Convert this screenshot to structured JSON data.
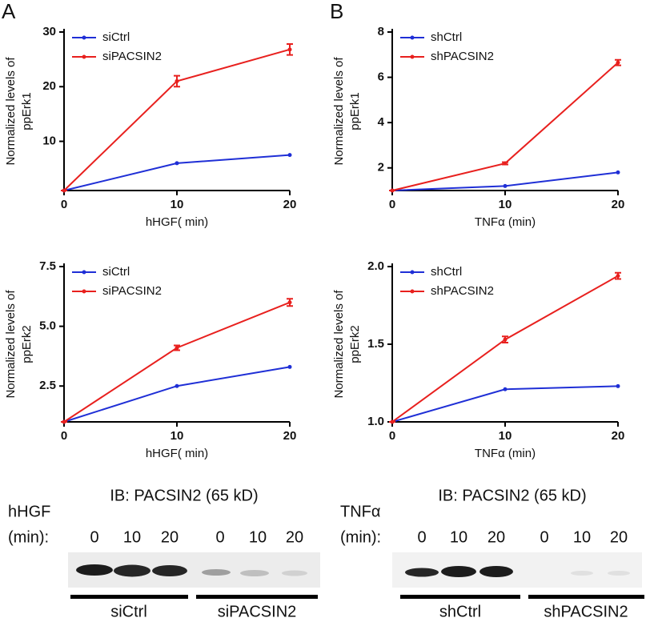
{
  "panel_labels": [
    "A",
    "B"
  ],
  "chart_data": [
    {
      "type": "line",
      "xlabel": "hHGF( min)",
      "ylabel": [
        "Normalized levels of",
        "ppErk1"
      ],
      "x": [
        0,
        10,
        20
      ],
      "xlim": [
        0,
        20
      ],
      "xticks": [
        0,
        10,
        20
      ],
      "ylim": [
        1,
        30
      ],
      "yticks": [
        10,
        20,
        30
      ],
      "legend": "upper left",
      "series": [
        {
          "name": "siCtrl",
          "color": "#1f2fd6",
          "values": [
            1,
            6,
            7.5
          ]
        },
        {
          "name": "siPACSIN2",
          "color": "#e8201e",
          "values": [
            1,
            21,
            26.8
          ],
          "errors": [
            0,
            1,
            1
          ]
        }
      ]
    },
    {
      "type": "line",
      "xlabel": "TNFα (min)",
      "ylabel": [
        "Normalized levels of",
        "ppErk1"
      ],
      "x": [
        0,
        10,
        20
      ],
      "xlim": [
        0,
        20
      ],
      "xticks": [
        0,
        10,
        20
      ],
      "ylim": [
        1,
        8
      ],
      "yticks": [
        2,
        4,
        6,
        8
      ],
      "legend": "upper left",
      "series": [
        {
          "name": "shCtrl",
          "color": "#1f2fd6",
          "values": [
            1,
            1.2,
            1.8
          ]
        },
        {
          "name": "shPACSIN2",
          "color": "#e8201e",
          "values": [
            1,
            2.2,
            6.65
          ],
          "errors": [
            0,
            0.05,
            0.12
          ]
        }
      ]
    },
    {
      "type": "line",
      "xlabel": "hHGF( min)",
      "ylabel": [
        "Normalized levels of",
        "ppErk2"
      ],
      "x": [
        0,
        10,
        20
      ],
      "xlim": [
        0,
        20
      ],
      "xticks": [
        0,
        10,
        20
      ],
      "ylim": [
        1,
        7.5
      ],
      "yticks": [
        2.5,
        {
          "value": 5,
          "label": "5.0"
        },
        7.5
      ],
      "legend": "upper left",
      "series": [
        {
          "name": "siCtrl",
          "color": "#1f2fd6",
          "values": [
            1,
            2.5,
            3.3
          ]
        },
        {
          "name": "siPACSIN2",
          "color": "#e8201e",
          "values": [
            1,
            4.1,
            6.0
          ],
          "errors": [
            0,
            0.1,
            0.15
          ]
        }
      ]
    },
    {
      "type": "line",
      "xlabel": "TNFα (min)",
      "ylabel": [
        "Normalized levels of",
        "ppErk2"
      ],
      "x": [
        0,
        10,
        20
      ],
      "xlim": [
        0,
        20
      ],
      "xticks": [
        0,
        10,
        20
      ],
      "ylim": [
        1,
        2
      ],
      "yticks": [
        {
          "value": 1,
          "label": "1.0"
        },
        1.5,
        {
          "value": 2,
          "label": "2.0"
        }
      ],
      "legend": "upper left",
      "series": [
        {
          "name": "shCtrl",
          "color": "#1f2fd6",
          "values": [
            1,
            1.21,
            1.23
          ]
        },
        {
          "name": "shPACSIN2",
          "color": "#e8201e",
          "values": [
            1,
            1.53,
            1.94
          ],
          "errors": [
            0,
            0.02,
            0.02
          ]
        }
      ]
    }
  ],
  "blots": [
    {
      "title": "IB: PACSIN2 (65 kD)",
      "treatment": "hHGF",
      "unit": "(min):",
      "times": [
        0,
        10,
        20,
        0,
        10,
        20
      ],
      "groups": [
        "siCtrl",
        "siPACSIN2"
      ]
    },
    {
      "title": "IB: PACSIN2 (65 kD)",
      "treatment": "TNFα",
      "unit": "(min):",
      "times": [
        0,
        10,
        20,
        0,
        10,
        20
      ],
      "groups": [
        "shCtrl",
        "shPACSIN2"
      ]
    }
  ]
}
